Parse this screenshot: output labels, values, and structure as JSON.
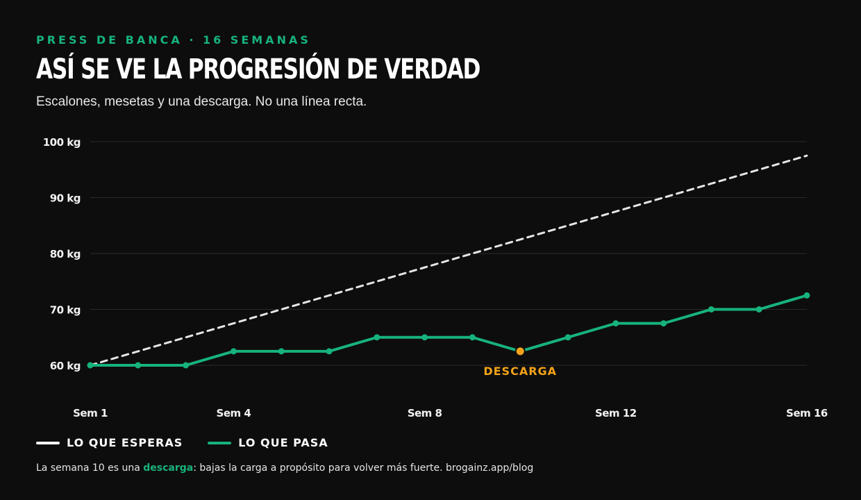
{
  "header": {
    "kicker": "PRESS DE BANCA · 16 SEMANAS",
    "title": "ASÍ SE VE LA PROGRESIÓN DE VERDAD",
    "subtitle": "Escalones, mesetas y una descarga. No una línea recta."
  },
  "legend": {
    "expected": "LO QUE ESPERAS",
    "actual": "LO QUE PASA"
  },
  "footnote": {
    "before": "La semana 10 es una ",
    "highlight": "descarga",
    "after": ": bajas la carga a propósito para volver más fuerte. brogainz.app/blog"
  },
  "colors": {
    "background": "#0d0d0d",
    "actual": "#17b37c",
    "expected": "#e6e6e6",
    "deload": "#f5a31a",
    "grid": "#2a2a2a"
  },
  "chart_data": {
    "type": "line",
    "x": [
      1,
      2,
      3,
      4,
      5,
      6,
      7,
      8,
      9,
      10,
      11,
      12,
      13,
      14,
      15,
      16
    ],
    "xticks": [
      {
        "x": 1,
        "label": "Sem 1"
      },
      {
        "x": 4,
        "label": "Sem 4"
      },
      {
        "x": 8,
        "label": "Sem 8"
      },
      {
        "x": 12,
        "label": "Sem 12"
      },
      {
        "x": 16,
        "label": "Sem 16"
      }
    ],
    "yticks": [
      {
        "y": 60,
        "label": "60 kg"
      },
      {
        "y": 70,
        "label": "70 kg"
      },
      {
        "y": 80,
        "label": "80 kg"
      },
      {
        "y": 90,
        "label": "90 kg"
      },
      {
        "y": 100,
        "label": "100 kg"
      }
    ],
    "ylim": [
      60,
      100
    ],
    "grid": true,
    "series": [
      {
        "name": "LO QUE ESPERAS",
        "style": "dashed",
        "x": [
          1,
          16
        ],
        "values": [
          60,
          97.5
        ]
      },
      {
        "name": "LO QUE PASA",
        "style": "solid",
        "values": [
          60,
          60,
          60,
          62.5,
          62.5,
          62.5,
          65,
          65,
          65,
          62.5,
          65,
          67.5,
          67.5,
          70,
          70,
          72.5
        ]
      }
    ],
    "annotations": [
      {
        "x": 10,
        "y": 62.5,
        "text": "DESCARGA"
      }
    ]
  }
}
